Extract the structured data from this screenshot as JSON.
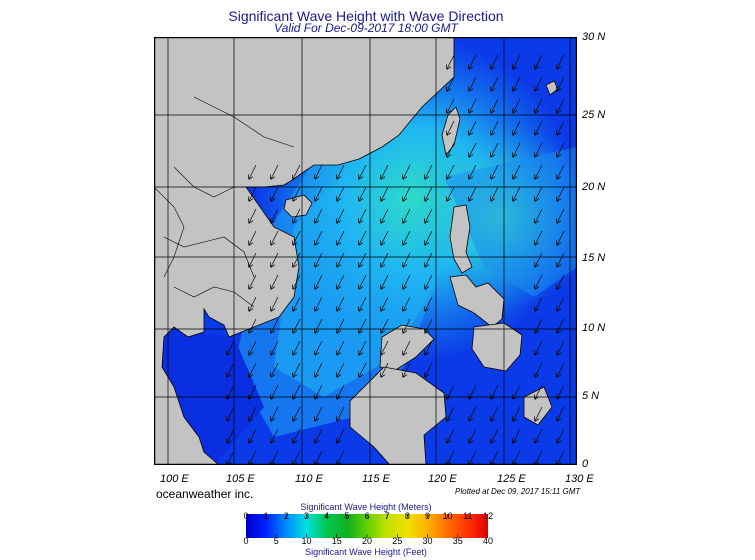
{
  "title": "Significant Wave Height with Wave Direction",
  "subtitle": "Valid For Dec-09-2017 18:00 GMT",
  "lat_labels": [
    "30 N",
    "25 N",
    "20 N",
    "15 N",
    "10 N",
    "5 N",
    "0"
  ],
  "lon_labels": [
    "100 E",
    "105 E",
    "110 E",
    "115 E",
    "120 E",
    "125 E",
    "130 E"
  ],
  "brand": "oceanweather inc.",
  "plotted": "Plotted at Dec 09, 2017 15:11 GMT",
  "legend": {
    "meters_title": "Significant Wave Height (Meters)",
    "feet_title": "Significant Wave Height (Feet)",
    "meters_ticks": [
      "0",
      "1",
      "2",
      "3",
      "4",
      "5",
      "6",
      "7",
      "8",
      "9",
      "10",
      "11",
      "12"
    ],
    "feet_ticks": [
      "0",
      "5",
      "10",
      "15",
      "20",
      "25",
      "30",
      "35",
      "40"
    ]
  },
  "colors": {
    "land": "#c3c3c3",
    "low_wave": "#0a2fe6",
    "mid_wave": "#1aa8f0",
    "high_wave": "#33e6b0",
    "title": "#1a1a8c"
  },
  "map": {
    "lon_range": [
      99,
      130
    ],
    "lat_range": [
      0,
      30
    ],
    "wave_direction": "north-easterly monsoon; arrows point toward south-west"
  }
}
